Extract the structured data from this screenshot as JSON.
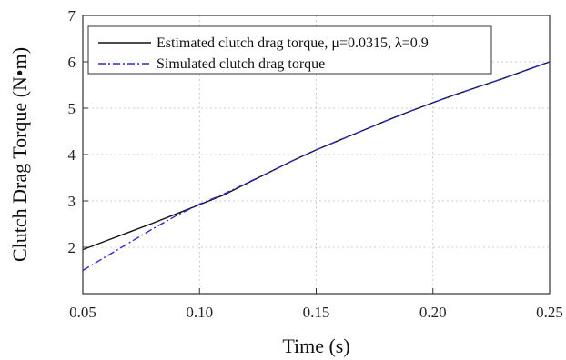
{
  "chart_data": {
    "type": "line",
    "title": "",
    "xlabel": "Time  (s)",
    "ylabel": "Clutch Drag Torque  (N•m)",
    "xlim": [
      0.05,
      0.25
    ],
    "ylim": [
      1,
      7
    ],
    "x_ticks": [
      "0.05",
      "0.10",
      "0.15",
      "0.20",
      "0.25"
    ],
    "y_ticks": [
      "2",
      "3",
      "4",
      "5",
      "6",
      "7"
    ],
    "x_tick_values": [
      0.05,
      0.1,
      0.15,
      0.2,
      0.25
    ],
    "y_tick_values": [
      2,
      3,
      4,
      5,
      6,
      7
    ],
    "grid": true,
    "legend_position": "top-left",
    "series": [
      {
        "name": "Estimated clutch drag torque, μ=0.0315, λ=0.9",
        "color": "#111111",
        "style": "solid",
        "x": [
          0.05,
          0.06,
          0.07,
          0.08,
          0.09,
          0.1,
          0.11,
          0.12,
          0.13,
          0.14,
          0.15,
          0.16,
          0.17,
          0.18,
          0.19,
          0.2,
          0.21,
          0.22,
          0.23,
          0.24,
          0.25
        ],
        "y": [
          1.95,
          2.14,
          2.33,
          2.52,
          2.72,
          2.92,
          3.12,
          3.37,
          3.62,
          3.87,
          4.1,
          4.31,
          4.52,
          4.73,
          4.93,
          5.12,
          5.3,
          5.47,
          5.64,
          5.82,
          6.0
        ]
      },
      {
        "name": "Simulated clutch drag torque",
        "color": "#2b2bd0",
        "style": "dashdot",
        "x": [
          0.05,
          0.06,
          0.07,
          0.08,
          0.09,
          0.1,
          0.11,
          0.12,
          0.13,
          0.14,
          0.15,
          0.16,
          0.17,
          0.18,
          0.19,
          0.2,
          0.21,
          0.22,
          0.23,
          0.24,
          0.25
        ],
        "y": [
          1.5,
          1.8,
          2.1,
          2.4,
          2.68,
          2.93,
          3.14,
          3.38,
          3.62,
          3.87,
          4.1,
          4.31,
          4.52,
          4.73,
          4.93,
          5.12,
          5.3,
          5.47,
          5.64,
          5.82,
          6.0
        ]
      }
    ]
  }
}
